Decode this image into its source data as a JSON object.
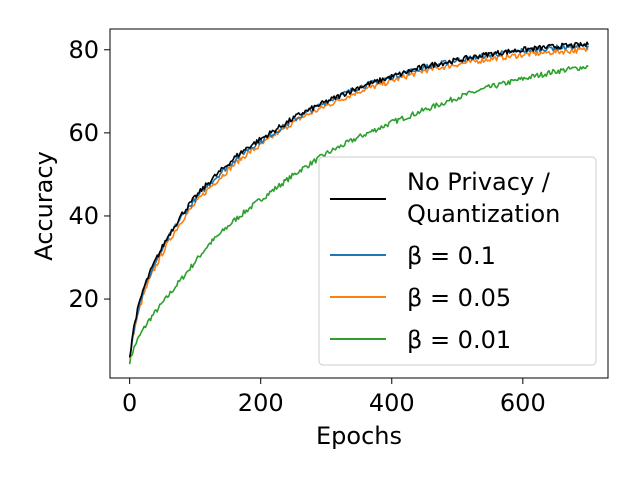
{
  "chart_data": {
    "type": "line",
    "title": "",
    "xlabel": "Epochs",
    "ylabel": "Accuracy",
    "xlim": [
      -30,
      730
    ],
    "ylim": [
      1,
      85
    ],
    "xticks": [
      0,
      200,
      400,
      600
    ],
    "yticks": [
      20,
      40,
      60,
      80
    ],
    "xtick_labels": [
      "0",
      "200",
      "400",
      "600"
    ],
    "ytick_labels": [
      "20",
      "40",
      "60",
      "80"
    ],
    "grid": false,
    "legend_position": "lower-right",
    "series": [
      {
        "name": "No Privacy / Quantization",
        "legend_lines": [
          "No Privacy /",
          "Quantization"
        ],
        "color": "#000000",
        "x": [
          0,
          5,
          10,
          20,
          30,
          40,
          50,
          60,
          70,
          80,
          90,
          100,
          120,
          140,
          160,
          180,
          200,
          230,
          260,
          300,
          350,
          400,
          450,
          500,
          550,
          600,
          650,
          700
        ],
        "values": [
          6,
          12,
          16,
          22,
          26,
          29.5,
          32.5,
          35.5,
          38,
          40.5,
          42.5,
          44.5,
          48,
          51,
          54,
          56.5,
          58.5,
          61.5,
          64.5,
          67.5,
          71,
          73.5,
          76,
          77.5,
          79,
          80,
          80.8,
          81.2
        ]
      },
      {
        "name": "β = 0.1",
        "color": "#1f77b4",
        "x": [
          0,
          5,
          10,
          20,
          30,
          40,
          50,
          60,
          70,
          80,
          90,
          100,
          120,
          140,
          160,
          180,
          200,
          230,
          260,
          300,
          350,
          400,
          450,
          500,
          550,
          600,
          650,
          700
        ],
        "values": [
          6,
          11.5,
          15.5,
          21.5,
          25.5,
          29,
          32,
          35,
          37.5,
          40,
          42,
          44,
          47.5,
          50.5,
          53.5,
          56,
          58,
          61,
          64,
          67.5,
          71,
          73.5,
          75.8,
          77.5,
          78.8,
          79.8,
          80.5,
          81
        ]
      },
      {
        "name": "β = 0.05",
        "color": "#ff7f0e",
        "x": [
          0,
          5,
          10,
          20,
          30,
          40,
          50,
          60,
          70,
          80,
          90,
          100,
          120,
          140,
          160,
          180,
          200,
          230,
          260,
          300,
          350,
          400,
          450,
          500,
          550,
          600,
          650,
          700
        ],
        "values": [
          5.5,
          11,
          14.5,
          20.5,
          24.5,
          28,
          31,
          34,
          36.5,
          39,
          41,
          43,
          46.5,
          49.5,
          52.5,
          55,
          57,
          60.5,
          63.5,
          66.5,
          70,
          72.5,
          75,
          76.5,
          77.8,
          78.8,
          79.5,
          80
        ]
      },
      {
        "name": "β = 0.01",
        "color": "#2ca02c",
        "x": [
          0,
          5,
          10,
          20,
          30,
          40,
          50,
          60,
          70,
          80,
          90,
          100,
          120,
          140,
          160,
          180,
          200,
          230,
          260,
          300,
          350,
          400,
          450,
          500,
          550,
          600,
          650,
          700
        ],
        "values": [
          5,
          7.5,
          9.5,
          12.5,
          15,
          17,
          19,
          21,
          23,
          25,
          27,
          29,
          33,
          36,
          39,
          41.5,
          44,
          47.5,
          51,
          55,
          59,
          62.5,
          65.5,
          68.5,
          71,
          73,
          74.8,
          76
        ]
      }
    ]
  }
}
